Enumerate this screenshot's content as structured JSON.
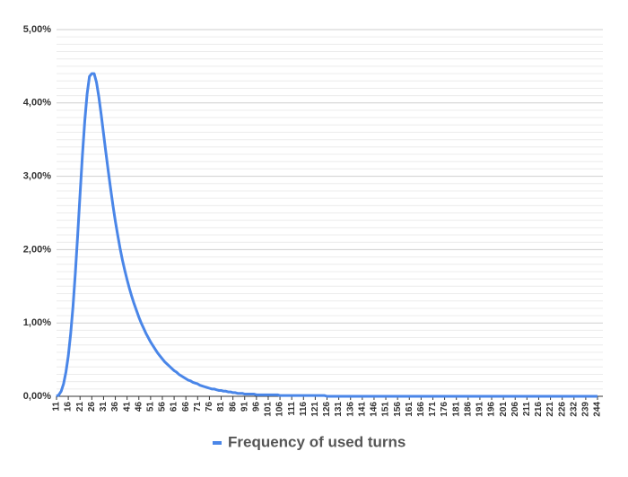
{
  "chart_data": {
    "type": "line",
    "categories": [
      11,
      null,
      null,
      null,
      null,
      16,
      null,
      null,
      null,
      null,
      21,
      null,
      null,
      null,
      null,
      26,
      null,
      null,
      null,
      null,
      31,
      null,
      null,
      null,
      null,
      36,
      null,
      null,
      null,
      null,
      41,
      null,
      null,
      null,
      null,
      46,
      null,
      null,
      null,
      null,
      51,
      null,
      null,
      null,
      null,
      56,
      null,
      null,
      null,
      null,
      61,
      null,
      null,
      null,
      null,
      66,
      null,
      null,
      null,
      null,
      71,
      null,
      null,
      null,
      null,
      76,
      null,
      null,
      null,
      null,
      81,
      null,
      null,
      null,
      null,
      86,
      null,
      null,
      null,
      null,
      91,
      null,
      null,
      null,
      null,
      96,
      null,
      null,
      null,
      null,
      101,
      null,
      null,
      null,
      null,
      106,
      null,
      null,
      null,
      null,
      111,
      null,
      null,
      null,
      null,
      116,
      null,
      null,
      null,
      null,
      121,
      null,
      null,
      null,
      null,
      126,
      null,
      null,
      null,
      null,
      131,
      null,
      null,
      null,
      null,
      136,
      null,
      null,
      null,
      null,
      141,
      null,
      null,
      null,
      null,
      146,
      null,
      null,
      null,
      null,
      151,
      null,
      null,
      null,
      null,
      156,
      null,
      null,
      null,
      null,
      161,
      null,
      null,
      null,
      null,
      166,
      null,
      null,
      null,
      null,
      171,
      null,
      null,
      null,
      null,
      176,
      null,
      null,
      null,
      null,
      181,
      null,
      null,
      null,
      null,
      186,
      null,
      null,
      null,
      null,
      191,
      null,
      null,
      null,
      null,
      196,
      null,
      null,
      null,
      null,
      201,
      null,
      null,
      null,
      null,
      206,
      null,
      null,
      null,
      null,
      211,
      null,
      null,
      null,
      null,
      216,
      null,
      null,
      null,
      null,
      221,
      null,
      null,
      null,
      null,
      226,
      null,
      null,
      null,
      null,
      232,
      null,
      null,
      null,
      null,
      239,
      null,
      null,
      null,
      null,
      244
    ],
    "series": [
      {
        "name": "Frequency of used turns",
        "color": "#4a86e8",
        "values": [
          0,
          0.02,
          0.07,
          0.17,
          0.33,
          0.55,
          0.85,
          1.22,
          1.68,
          2.2,
          2.75,
          3.28,
          3.75,
          4.12,
          4.36,
          4.4,
          4.4,
          4.28,
          4.08,
          3.84,
          3.58,
          3.32,
          3.07,
          2.83,
          2.6,
          2.39,
          2.2,
          2.02,
          1.86,
          1.72,
          1.59,
          1.47,
          1.36,
          1.26,
          1.17,
          1.08,
          1.0,
          0.93,
          0.86,
          0.8,
          0.74,
          0.69,
          0.64,
          0.59,
          0.55,
          0.51,
          0.47,
          0.44,
          0.41,
          0.38,
          0.35,
          0.33,
          0.3,
          0.28,
          0.26,
          0.24,
          0.22,
          0.21,
          0.19,
          0.18,
          0.17,
          0.15,
          0.14,
          0.13,
          0.12,
          0.11,
          0.1,
          0.1,
          0.09,
          0.08,
          0.08,
          0.07,
          0.07,
          0.06,
          0.06,
          0.05,
          0.05,
          0.04,
          0.04,
          0.04,
          0.03,
          0.03,
          0.03,
          0.03,
          0.03,
          0.02,
          0.02,
          0.02,
          0.02,
          0.02,
          0.02,
          0.02,
          0.02,
          0.02,
          0.02,
          0.01,
          0.01,
          0.01,
          0.01,
          0.01,
          0.01,
          0.01,
          0.01,
          0.01,
          0.01,
          0.01,
          0.01,
          0.01,
          0.01,
          0.01,
          0.01,
          0.01,
          0.01,
          0.01,
          0.01,
          0,
          0,
          0,
          0,
          0,
          0,
          0,
          0,
          0,
          0,
          0,
          0,
          0,
          0,
          0,
          0,
          0,
          0,
          0,
          0,
          0,
          0,
          0,
          0,
          0,
          0,
          0,
          0,
          0,
          0,
          0,
          0,
          0,
          0,
          0,
          0,
          0,
          0,
          0,
          0,
          0,
          0,
          0,
          0,
          0,
          0,
          0,
          0,
          0,
          0,
          0,
          0,
          0,
          0,
          0,
          0,
          0,
          0,
          0,
          0,
          0,
          0,
          0,
          0,
          0,
          0,
          0,
          0,
          0,
          0,
          0,
          0,
          0,
          0,
          0,
          0,
          0,
          0,
          0,
          0,
          0,
          0,
          0,
          0,
          0,
          0,
          0,
          0,
          0,
          0,
          0,
          0,
          0,
          0,
          0,
          0,
          0,
          0,
          0,
          0,
          0,
          0,
          0,
          0,
          0,
          0,
          0,
          0,
          0,
          0,
          0,
          0,
          0,
          0,
          0,
          0
        ]
      }
    ],
    "ylim": [
      0,
      5
    ],
    "yticks": [
      {
        "value": 0,
        "label": "0,00%"
      },
      {
        "value": 1,
        "label": "1,00%"
      },
      {
        "value": 2,
        "label": "2,00%"
      },
      {
        "value": 3,
        "label": "3,00%"
      },
      {
        "value": 4,
        "label": "4,00%"
      },
      {
        "value": 5,
        "label": "5,00%"
      }
    ],
    "grid": true,
    "minor_grid_divisions": 10,
    "legend": "bottom"
  }
}
